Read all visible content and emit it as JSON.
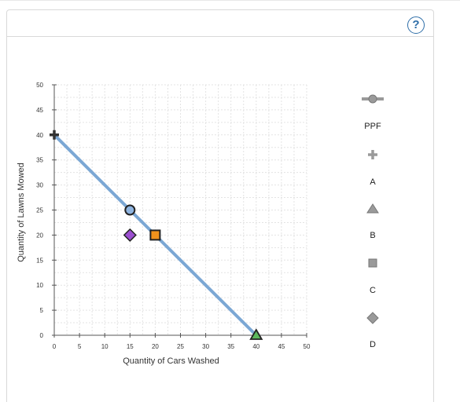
{
  "help": {
    "label": "?"
  },
  "chart_data": {
    "type": "scatter",
    "xlabel": "Quantity of Cars Washed",
    "ylabel": "Quantity of Lawns Mowed",
    "xlim": [
      0,
      50
    ],
    "ylim": [
      0,
      50
    ],
    "xticks": [
      0,
      5,
      10,
      15,
      20,
      25,
      30,
      35,
      40,
      45,
      50
    ],
    "yticks": [
      0,
      5,
      10,
      15,
      20,
      25,
      30,
      35,
      40,
      45,
      50
    ],
    "grid": true,
    "legend_placement": "right",
    "series": [
      {
        "name": "PPF",
        "marker": "circle",
        "color": "#7ba7d4",
        "line": true,
        "points": [
          [
            0,
            40
          ],
          [
            40,
            0
          ]
        ]
      },
      {
        "name": "A",
        "marker": "cross",
        "color": "#333333",
        "points": [
          [
            0,
            40
          ]
        ]
      },
      {
        "name": "B",
        "marker": "triangle",
        "color": "#5cb85c",
        "points": [
          [
            40,
            0
          ]
        ]
      },
      {
        "name": "C",
        "marker": "square",
        "color": "#f0921c",
        "points": [
          [
            20,
            20
          ]
        ]
      },
      {
        "name": "D",
        "marker": "diamond",
        "color": "#9b4fd0",
        "points": [
          [
            15,
            20
          ]
        ]
      }
    ],
    "extra_points": [
      {
        "marker": "circle",
        "color": "#8eb4e0",
        "x": 15,
        "y": 25
      }
    ],
    "legend_icon_color": "#9a9a9a"
  }
}
